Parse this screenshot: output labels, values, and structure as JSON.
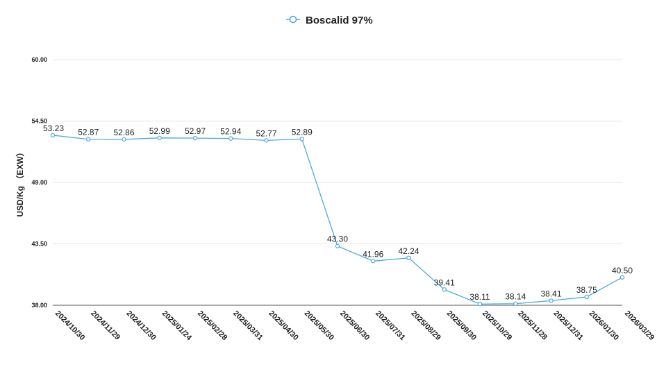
{
  "chart_data": {
    "type": "line",
    "title": "",
    "ylabel": "USD/Kg （EXW）",
    "xlabel": "",
    "legend": {
      "position": "top-center"
    },
    "grid": true,
    "ylim": [
      38.0,
      60.0
    ],
    "yticks": [
      "38.00",
      "43.50",
      "49.00",
      "54.50",
      "60.00"
    ],
    "categories": [
      "2024/10/30",
      "2024/11/29",
      "2024/12/30",
      "2025/01/24",
      "2025/02/28",
      "2025/03/31",
      "2025/04/30",
      "2025/05/30",
      "2025/06/30",
      "2025/07/31",
      "2025/08/29",
      "2025/09/30",
      "2025/10/29",
      "2025/11/28",
      "2025/12/31",
      "2026/01/30",
      "2026/03/29"
    ],
    "series": [
      {
        "name": "Boscalid 97%",
        "color": "#4aa8e8",
        "values": [
          53.23,
          52.87,
          52.86,
          52.99,
          52.97,
          52.94,
          52.77,
          52.89,
          43.3,
          41.96,
          42.24,
          39.41,
          38.11,
          38.14,
          38.41,
          38.75,
          40.5
        ],
        "labels": [
          "53.23",
          "52.87",
          "52.86",
          "52.99",
          "52.97",
          "52.94",
          "52.77",
          "52.89",
          "43.30",
          "41.96",
          "42.24",
          "39.41",
          "38.11",
          "38.14",
          "38.41",
          "38.75",
          "40.50"
        ]
      }
    ]
  }
}
